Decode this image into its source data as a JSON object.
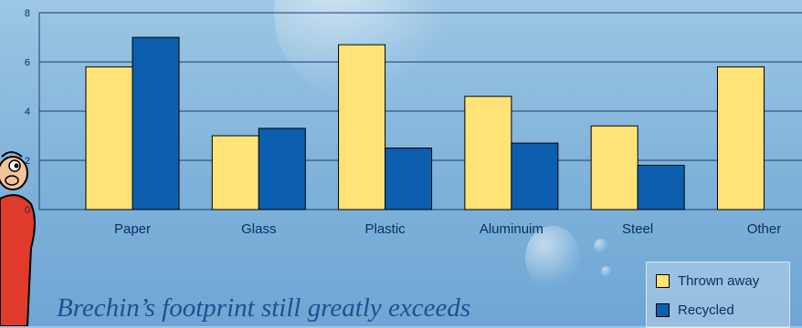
{
  "chart_data": {
    "type": "bar",
    "categories": [
      "Paper",
      "Glass",
      "Plastic",
      "Aluminuim",
      "Steel",
      "Other"
    ],
    "series": [
      {
        "name": "Thrown away",
        "color": "#ffe377",
        "values": [
          5.8,
          3.0,
          6.7,
          4.6,
          3.4,
          5.8
        ]
      },
      {
        "name": "Recycled",
        "color": "#0b5fae",
        "values": [
          7.0,
          3.3,
          2.5,
          2.7,
          1.8,
          null
        ]
      }
    ],
    "yticks": [
      "0",
      "2",
      "4",
      "6",
      "8"
    ],
    "ylim": [
      0,
      8
    ],
    "grid": true,
    "legend_position": "bottom-right"
  },
  "caption": "Brechin’s footprint still greatly exceeds"
}
